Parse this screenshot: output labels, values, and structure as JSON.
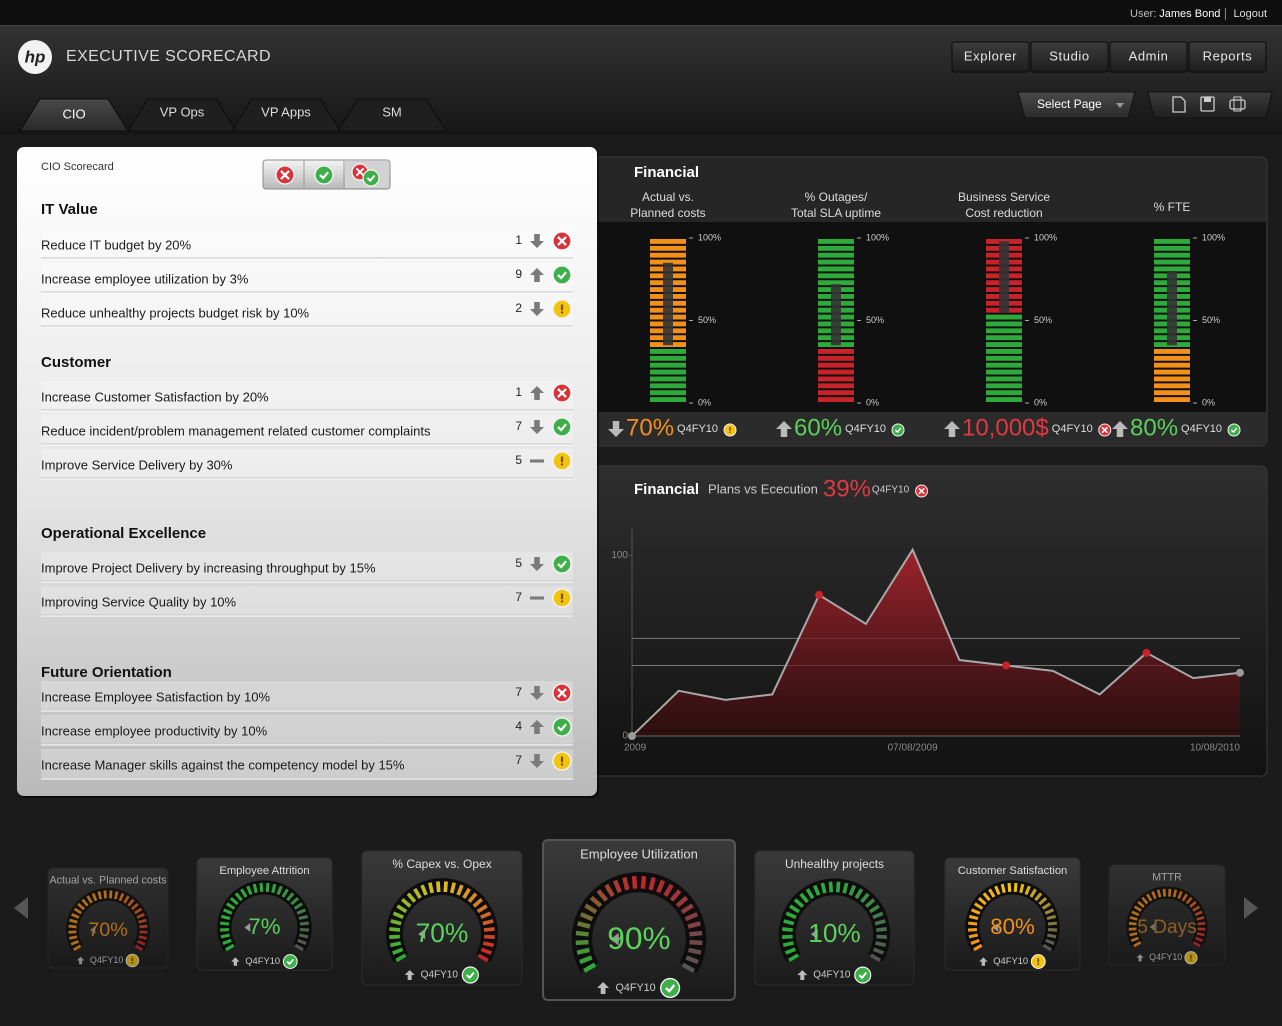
{
  "header": {
    "user_label": "User:",
    "user_name": "James Bond",
    "logout": "Logout",
    "logo": "hp",
    "app_title": "EXECUTIVE SCORECARD",
    "nav": [
      "Explorer",
      "Studio",
      "Admin",
      "Reports"
    ],
    "select_page": "Select Page"
  },
  "tabs": {
    "items": [
      "CIO",
      "VP Ops",
      "VP Apps",
      "SM"
    ],
    "active": 0
  },
  "scorecard": {
    "title": "CIO Scorecard",
    "sections": [
      {
        "title": "IT Value",
        "items": [
          {
            "label": "Reduce IT budget by 20%",
            "value": 1,
            "trend": "down",
            "status": "bad"
          },
          {
            "label": "Increase employee utilization by 3%",
            "value": 9,
            "trend": "up",
            "status": "good"
          },
          {
            "label": "Reduce unhealthy projects budget risk by 10%",
            "value": 2,
            "trend": "down",
            "status": "warn"
          }
        ]
      },
      {
        "title": "Customer",
        "items": [
          {
            "label": "Increase Customer Satisfaction by 20%",
            "value": 1,
            "trend": "up",
            "status": "bad"
          },
          {
            "label": "Reduce incident/problem management related customer complaints",
            "value": 7,
            "trend": "down",
            "status": "good"
          },
          {
            "label": "Improve Service Delivery by 30%",
            "value": 5,
            "trend": "flat",
            "status": "warn"
          }
        ]
      },
      {
        "title": "Operational Excellence",
        "items": [
          {
            "label": "Improve Project Delivery by increasing throughput by 15%",
            "value": 5,
            "trend": "down",
            "status": "good"
          },
          {
            "label": "Improving Service Quality by 10%",
            "value": 7,
            "trend": "flat",
            "status": "warn"
          }
        ]
      },
      {
        "title": "Future Orientation",
        "items": [
          {
            "label": "Increase Employee Satisfaction by 10%",
            "value": 7,
            "trend": "down",
            "status": "bad"
          },
          {
            "label": "Increase employee productivity by 10%",
            "value": 4,
            "trend": "up",
            "status": "good"
          },
          {
            "label": "Increase Manager skills against the competency model by  15%",
            "value": 7,
            "trend": "down",
            "status": "warn"
          }
        ]
      }
    ]
  },
  "financial": {
    "title": "Financial",
    "period": "Q4FY10",
    "ticks": [
      {
        "value": 100,
        "label": "100%"
      },
      {
        "value": 50,
        "label": "50%"
      },
      {
        "value": 0,
        "label": "0%"
      }
    ],
    "meters": [
      {
        "label": [
          "Actual vs.",
          "Planned costs"
        ],
        "value": "70%",
        "trend": "down",
        "status": "warn",
        "color": "#f39019",
        "level": 85,
        "bands": [
          {
            "to": 35,
            "color": "#2eaa3a"
          },
          {
            "to": 100,
            "color": "#f39019"
          }
        ]
      },
      {
        "label": [
          "% Outages/",
          "Total SLA uptime"
        ],
        "value": "60%",
        "trend": "up",
        "status": "good",
        "color": "#5ad15a",
        "level": 72,
        "bands": [
          {
            "to": 35,
            "color": "#c8222a"
          },
          {
            "to": 100,
            "color": "#2eaa3a"
          }
        ]
      },
      {
        "label": [
          "Business Service",
          "Cost reduction"
        ],
        "value": "10,000$",
        "trend": "up",
        "status": "bad",
        "color": "#e0393f",
        "level": 98,
        "bands": [
          {
            "to": 55,
            "color": "#2eaa3a"
          },
          {
            "to": 100,
            "color": "#c8222a"
          }
        ]
      },
      {
        "label": [
          "% FTE"
        ],
        "value": "80%",
        "trend": "up",
        "status": "good",
        "color": "#5ad15a",
        "level": 80,
        "bands": [
          {
            "to": 35,
            "color": "#f39019"
          },
          {
            "to": 100,
            "color": "#2eaa3a"
          }
        ]
      }
    ]
  },
  "trend_chart": {
    "type": "area",
    "title": "Financial",
    "subtitle": "Plans vs Ececution",
    "kpi": "39%",
    "period": "Q4FY10",
    "status": "bad",
    "categories": [
      "2009",
      null,
      null,
      null,
      null,
      null,
      "07/08/2009",
      null,
      null,
      null,
      null,
      null,
      null,
      "10/08/2010"
    ],
    "values": [
      0,
      25,
      20,
      23,
      78,
      62,
      103,
      42,
      39,
      36,
      23,
      46,
      32,
      35
    ],
    "ylim": [
      0,
      115
    ],
    "yticks": [
      0,
      100
    ],
    "reference_lines": [
      54,
      39
    ],
    "highlight_points": [
      4,
      8,
      11
    ],
    "color": "#b3232b"
  },
  "gauges": {
    "period": "Q4FY10",
    "items": [
      {
        "title": "Actual vs. Planned costs",
        "value": "70%",
        "color": "#f39019",
        "status": "warn",
        "arc": [
          "#f39019",
          "#f39019",
          "#c8222a"
        ]
      },
      {
        "title": "Employee Attrition",
        "value": "7%",
        "color": "#5ad15a",
        "status": "good",
        "arc": [
          "#2eaa3a",
          "#2eaa3a",
          "#555555"
        ]
      },
      {
        "title": "% Capex vs. Opex",
        "value": "70%",
        "color": "#5ad15a",
        "status": "good",
        "arc": [
          "#2eaa3a",
          "#e0c020",
          "#c8222a"
        ]
      },
      {
        "title": "Employee Utilization",
        "value": "90%",
        "color": "#5ad15a",
        "status": "good",
        "arc": [
          "#2eaa3a",
          "#c8222a",
          "#555555"
        ]
      },
      {
        "title": "Unhealthy projects",
        "value": "10%",
        "color": "#5ad15a",
        "status": "good",
        "arc": [
          "#2eaa3a",
          "#2eaa3a",
          "#555555"
        ]
      },
      {
        "title": "Customer Satisfaction",
        "value": "80%",
        "color": "#f39019",
        "status": "warn",
        "arc": [
          "#f39019",
          "#f2c40f",
          "#555555"
        ]
      },
      {
        "title": "MTTR",
        "value": "5 Days",
        "color": "#c07a2a",
        "status": "warn",
        "arc": [
          "#f39019",
          "#f39019",
          "#c8222a"
        ]
      }
    ]
  }
}
